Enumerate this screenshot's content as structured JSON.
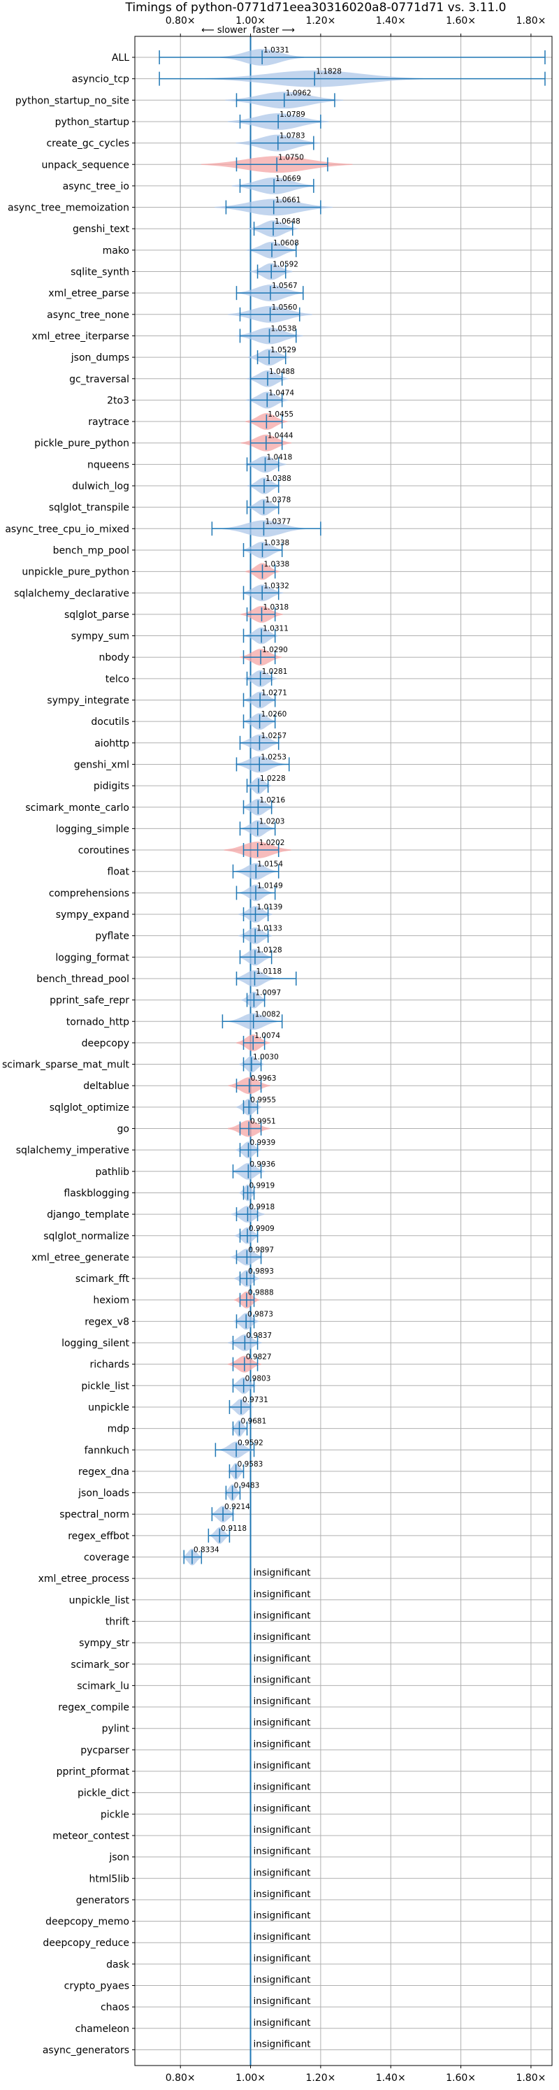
{
  "chart_data": {
    "type": "violin",
    "title": "Timings of python-0771d71eea30316020a8-0771d71 vs. 3.11.0",
    "direction_label": "⟵ slower  faster ⟶",
    "xlim": [
      0.67,
      1.86
    ],
    "xticks": [
      0.8,
      1.0,
      1.2,
      1.4,
      1.6,
      1.8
    ],
    "xtick_labels": [
      "0.80×",
      "1.00×",
      "1.20×",
      "1.40×",
      "1.60×",
      "1.80×"
    ],
    "reference_x": 1.0,
    "insignificant_label": "insignificant",
    "colors": {
      "faster": "#aec7e8",
      "slower": "#f4a6a6",
      "line": "#1f77b4",
      "grid": "#b0b0b0"
    },
    "benchmarks": [
      {
        "name": "ALL",
        "value": 1.0331,
        "min": 0.74,
        "max": 1.84,
        "spread": 0.05,
        "slower": false
      },
      {
        "name": "asyncio_tcp",
        "value": 1.1828,
        "min": 0.74,
        "max": 1.84,
        "spread": 0.13,
        "slower": false
      },
      {
        "name": "python_startup_no_site",
        "value": 1.0962,
        "min": 0.96,
        "max": 1.24,
        "spread": 0.07,
        "slower": false
      },
      {
        "name": "python_startup",
        "value": 1.0789,
        "min": 0.97,
        "max": 1.2,
        "spread": 0.06,
        "slower": false
      },
      {
        "name": "create_gc_cycles",
        "value": 1.0783,
        "min": 1.0,
        "max": 1.18,
        "spread": 0.05,
        "slower": false
      },
      {
        "name": "unpack_sequence",
        "value": 1.075,
        "min": 0.96,
        "max": 1.22,
        "spread": 0.09,
        "slower": true
      },
      {
        "name": "async_tree_io",
        "value": 1.0669,
        "min": 0.97,
        "max": 1.18,
        "spread": 0.05,
        "slower": false
      },
      {
        "name": "async_tree_memoization",
        "value": 1.0661,
        "min": 0.93,
        "max": 1.2,
        "spread": 0.07,
        "slower": false
      },
      {
        "name": "genshi_text",
        "value": 1.0648,
        "min": 1.01,
        "max": 1.12,
        "spread": 0.03,
        "slower": false
      },
      {
        "name": "mako",
        "value": 1.0608,
        "min": 1.0,
        "max": 1.13,
        "spread": 0.03,
        "slower": false
      },
      {
        "name": "sqlite_synth",
        "value": 1.0592,
        "min": 1.02,
        "max": 1.1,
        "spread": 0.025,
        "slower": false
      },
      {
        "name": "xml_etree_parse",
        "value": 1.0567,
        "min": 0.96,
        "max": 1.15,
        "spread": 0.04,
        "slower": false
      },
      {
        "name": "async_tree_none",
        "value": 1.056,
        "min": 0.97,
        "max": 1.14,
        "spread": 0.05,
        "slower": false
      },
      {
        "name": "xml_etree_iterparse",
        "value": 1.0538,
        "min": 0.97,
        "max": 1.13,
        "spread": 0.04,
        "slower": false
      },
      {
        "name": "json_dumps",
        "value": 1.0529,
        "min": 1.02,
        "max": 1.1,
        "spread": 0.025,
        "slower": false
      },
      {
        "name": "gc_traversal",
        "value": 1.0488,
        "min": 1.0,
        "max": 1.09,
        "spread": 0.025,
        "slower": false
      },
      {
        "name": "2to3",
        "value": 1.0474,
        "min": 1.0,
        "max": 1.09,
        "spread": 0.025,
        "slower": false
      },
      {
        "name": "raytrace",
        "value": 1.0455,
        "min": 1.0,
        "max": 1.09,
        "spread": 0.025,
        "slower": true
      },
      {
        "name": "pickle_pure_python",
        "value": 1.0444,
        "min": 1.0,
        "max": 1.09,
        "spread": 0.03,
        "slower": true
      },
      {
        "name": "nqueens",
        "value": 1.0418,
        "min": 0.99,
        "max": 1.08,
        "spread": 0.025,
        "slower": false
      },
      {
        "name": "dulwich_log",
        "value": 1.0388,
        "min": 1.0,
        "max": 1.08,
        "spread": 0.02,
        "slower": false
      },
      {
        "name": "sqlglot_transpile",
        "value": 1.0378,
        "min": 0.99,
        "max": 1.08,
        "spread": 0.02,
        "slower": false
      },
      {
        "name": "async_tree_cpu_io_mixed",
        "value": 1.0377,
        "min": 0.89,
        "max": 1.2,
        "spread": 0.05,
        "slower": false
      },
      {
        "name": "bench_mp_pool",
        "value": 1.0338,
        "min": 0.98,
        "max": 1.09,
        "spread": 0.025,
        "slower": false
      },
      {
        "name": "unpickle_pure_python",
        "value": 1.0338,
        "min": 1.0,
        "max": 1.07,
        "spread": 0.02,
        "slower": true
      },
      {
        "name": "sqlalchemy_declarative",
        "value": 1.0332,
        "min": 0.98,
        "max": 1.08,
        "spread": 0.025,
        "slower": false
      },
      {
        "name": "sqlglot_parse",
        "value": 1.0318,
        "min": 0.99,
        "max": 1.07,
        "spread": 0.025,
        "slower": true
      },
      {
        "name": "sympy_sum",
        "value": 1.0311,
        "min": 0.98,
        "max": 1.07,
        "spread": 0.02,
        "slower": false
      },
      {
        "name": "nbody",
        "value": 1.029,
        "min": 0.98,
        "max": 1.07,
        "spread": 0.025,
        "slower": true
      },
      {
        "name": "telco",
        "value": 1.0281,
        "min": 0.99,
        "max": 1.06,
        "spread": 0.02,
        "slower": false
      },
      {
        "name": "sympy_integrate",
        "value": 1.0271,
        "min": 0.98,
        "max": 1.07,
        "spread": 0.02,
        "slower": false
      },
      {
        "name": "docutils",
        "value": 1.026,
        "min": 0.98,
        "max": 1.07,
        "spread": 0.02,
        "slower": false
      },
      {
        "name": "aiohttp",
        "value": 1.0257,
        "min": 0.97,
        "max": 1.08,
        "spread": 0.025,
        "slower": false
      },
      {
        "name": "genshi_xml",
        "value": 1.0253,
        "min": 0.96,
        "max": 1.11,
        "spread": 0.03,
        "slower": false
      },
      {
        "name": "pidigits",
        "value": 1.0228,
        "min": 0.99,
        "max": 1.05,
        "spread": 0.015,
        "slower": false
      },
      {
        "name": "scimark_monte_carlo",
        "value": 1.0216,
        "min": 0.98,
        "max": 1.06,
        "spread": 0.02,
        "slower": false
      },
      {
        "name": "logging_simple",
        "value": 1.0203,
        "min": 0.97,
        "max": 1.07,
        "spread": 0.02,
        "slower": false
      },
      {
        "name": "coroutines",
        "value": 1.0202,
        "min": 0.98,
        "max": 1.08,
        "spread": 0.04,
        "slower": true
      },
      {
        "name": "float",
        "value": 1.0154,
        "min": 0.95,
        "max": 1.08,
        "spread": 0.025,
        "slower": false
      },
      {
        "name": "comprehensions",
        "value": 1.0149,
        "min": 0.96,
        "max": 1.07,
        "spread": 0.02,
        "slower": false
      },
      {
        "name": "sympy_expand",
        "value": 1.0139,
        "min": 0.98,
        "max": 1.05,
        "spread": 0.02,
        "slower": false
      },
      {
        "name": "pyflate",
        "value": 1.0133,
        "min": 0.98,
        "max": 1.05,
        "spread": 0.02,
        "slower": false
      },
      {
        "name": "logging_format",
        "value": 1.0128,
        "min": 0.97,
        "max": 1.06,
        "spread": 0.02,
        "slower": false
      },
      {
        "name": "bench_thread_pool",
        "value": 1.0118,
        "min": 0.96,
        "max": 1.13,
        "spread": 0.025,
        "slower": false
      },
      {
        "name": "pprint_safe_repr",
        "value": 1.0097,
        "min": 0.99,
        "max": 1.04,
        "spread": 0.015,
        "slower": false
      },
      {
        "name": "tornado_http",
        "value": 1.0082,
        "min": 0.92,
        "max": 1.09,
        "spread": 0.03,
        "slower": false
      },
      {
        "name": "deepcopy",
        "value": 1.0074,
        "min": 0.98,
        "max": 1.04,
        "spread": 0.02,
        "slower": true
      },
      {
        "name": "scimark_sparse_mat_mult",
        "value": 1.003,
        "min": 0.98,
        "max": 1.03,
        "spread": 0.015,
        "slower": false
      },
      {
        "name": "deltablue",
        "value": 0.9963,
        "min": 0.96,
        "max": 1.03,
        "spread": 0.025,
        "slower": true
      },
      {
        "name": "sqlglot_optimize",
        "value": 0.9955,
        "min": 0.98,
        "max": 1.02,
        "spread": 0.015,
        "slower": false
      },
      {
        "name": "go",
        "value": 0.9951,
        "min": 0.97,
        "max": 1.03,
        "spread": 0.025,
        "slower": true
      },
      {
        "name": "sqlalchemy_imperative",
        "value": 0.9939,
        "min": 0.97,
        "max": 1.02,
        "spread": 0.015,
        "slower": false
      },
      {
        "name": "pathlib",
        "value": 0.9936,
        "min": 0.95,
        "max": 1.03,
        "spread": 0.02,
        "slower": false
      },
      {
        "name": "flaskblogging",
        "value": 0.9919,
        "min": 0.98,
        "max": 1.01,
        "spread": 0.01,
        "slower": false
      },
      {
        "name": "django_template",
        "value": 0.9918,
        "min": 0.96,
        "max": 1.02,
        "spread": 0.02,
        "slower": false
      },
      {
        "name": "sqlglot_normalize",
        "value": 0.9909,
        "min": 0.97,
        "max": 1.02,
        "spread": 0.015,
        "slower": false
      },
      {
        "name": "xml_etree_generate",
        "value": 0.9897,
        "min": 0.96,
        "max": 1.03,
        "spread": 0.02,
        "slower": false
      },
      {
        "name": "scimark_fft",
        "value": 0.9893,
        "min": 0.97,
        "max": 1.01,
        "spread": 0.015,
        "slower": false
      },
      {
        "name": "hexiom",
        "value": 0.9888,
        "min": 0.97,
        "max": 1.01,
        "spread": 0.015,
        "slower": true
      },
      {
        "name": "regex_v8",
        "value": 0.9873,
        "min": 0.96,
        "max": 1.01,
        "spread": 0.015,
        "slower": false
      },
      {
        "name": "logging_silent",
        "value": 0.9837,
        "min": 0.95,
        "max": 1.02,
        "spread": 0.02,
        "slower": false
      },
      {
        "name": "richards",
        "value": 0.9827,
        "min": 0.95,
        "max": 1.02,
        "spread": 0.02,
        "slower": true
      },
      {
        "name": "pickle_list",
        "value": 0.9803,
        "min": 0.95,
        "max": 1.01,
        "spread": 0.015,
        "slower": false
      },
      {
        "name": "unpickle",
        "value": 0.9731,
        "min": 0.94,
        "max": 1.0,
        "spread": 0.015,
        "slower": false
      },
      {
        "name": "mdp",
        "value": 0.9681,
        "min": 0.95,
        "max": 0.99,
        "spread": 0.01,
        "slower": false
      },
      {
        "name": "fannkuch",
        "value": 0.9592,
        "min": 0.9,
        "max": 1.01,
        "spread": 0.02,
        "slower": false
      },
      {
        "name": "regex_dna",
        "value": 0.9583,
        "min": 0.94,
        "max": 0.98,
        "spread": 0.01,
        "slower": false
      },
      {
        "name": "json_loads",
        "value": 0.9483,
        "min": 0.93,
        "max": 0.97,
        "spread": 0.01,
        "slower": false
      },
      {
        "name": "spectral_norm",
        "value": 0.9214,
        "min": 0.89,
        "max": 0.95,
        "spread": 0.015,
        "slower": false
      },
      {
        "name": "regex_effbot",
        "value": 0.9118,
        "min": 0.88,
        "max": 0.94,
        "spread": 0.012,
        "slower": false
      },
      {
        "name": "coverage",
        "value": 0.8334,
        "min": 0.81,
        "max": 0.86,
        "spread": 0.012,
        "slower": false
      }
    ],
    "insignificant": [
      "xml_etree_process",
      "unpickle_list",
      "thrift",
      "sympy_str",
      "scimark_sor",
      "scimark_lu",
      "regex_compile",
      "pylint",
      "pycparser",
      "pprint_pformat",
      "pickle_dict",
      "pickle",
      "meteor_contest",
      "json",
      "html5lib",
      "generators",
      "deepcopy_memo",
      "deepcopy_reduce",
      "dask",
      "crypto_pyaes",
      "chaos",
      "chameleon",
      "async_generators"
    ]
  }
}
